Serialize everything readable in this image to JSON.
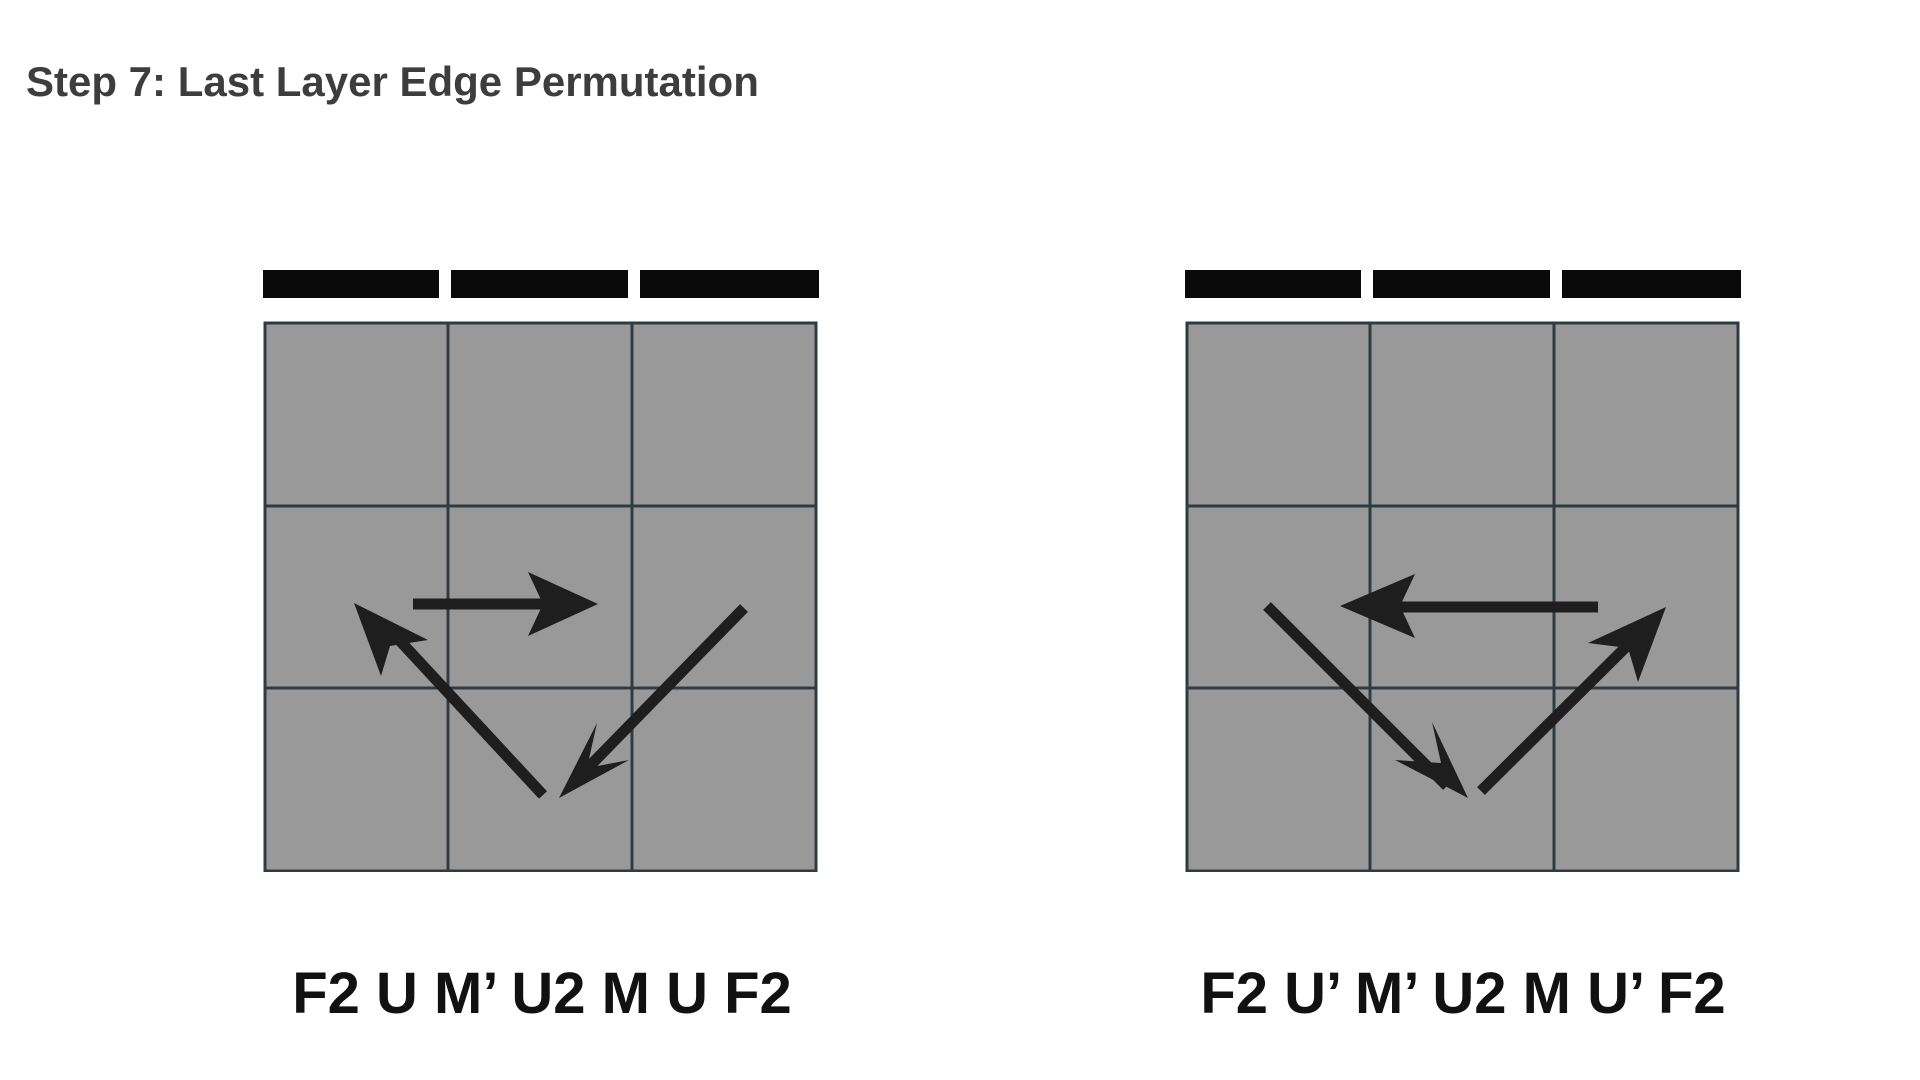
{
  "title": "Step 7: Last Layer Edge Permutation",
  "colors": {
    "sticker": "#999999",
    "grid_line": "#2f3b42",
    "top_bar": "#0a0a0a",
    "arrow": "#1e1e1e",
    "title_text": "#3d3d3d",
    "algorithm_text": "#111111"
  },
  "cases": [
    {
      "algorithm": "F2 U M’ U2 M U F2",
      "cycle": "counterclockwise"
    },
    {
      "algorithm": "F2 U’ M’ U2 M U’ F2",
      "cycle": "clockwise"
    }
  ]
}
